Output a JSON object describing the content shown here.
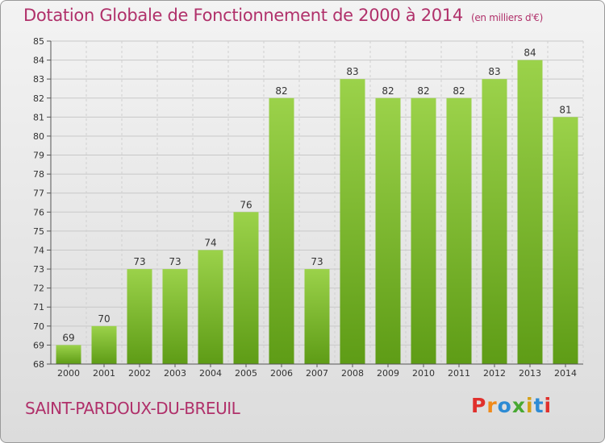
{
  "title": "Dotation Globale de Fonctionnement de 2000 à 2014",
  "unit": "(en milliers d'€)",
  "commune": "SAINT-PARDOUX-DU-BREUIL",
  "logo": {
    "letters": [
      "P",
      "r",
      "o",
      "x",
      "i",
      "t",
      "i"
    ],
    "colors": [
      "#e0302c",
      "#f08a1a",
      "#2d8bd4",
      "#48a832",
      "#d4a017",
      "#2d8bd4",
      "#e0302c"
    ]
  },
  "colors": {
    "bar_top": "#9bd24a",
    "bar_bottom": "#5e9c16",
    "title": "#b0306a"
  },
  "chart_data": {
    "type": "bar",
    "title": "Dotation Globale de Fonctionnement de 2000 à 2014",
    "categories": [
      "2000",
      "2001",
      "2002",
      "2003",
      "2004",
      "2005",
      "2006",
      "2007",
      "2008",
      "2009",
      "2010",
      "2011",
      "2012",
      "2013",
      "2014"
    ],
    "values": [
      69,
      70,
      73,
      73,
      74,
      76,
      82,
      73,
      83,
      82,
      82,
      82,
      83,
      84,
      81
    ],
    "ylim": [
      68,
      85
    ],
    "yticks": [
      68,
      69,
      70,
      71,
      72,
      73,
      74,
      75,
      76,
      77,
      78,
      79,
      80,
      81,
      82,
      83,
      84,
      85
    ],
    "grid": true
  }
}
